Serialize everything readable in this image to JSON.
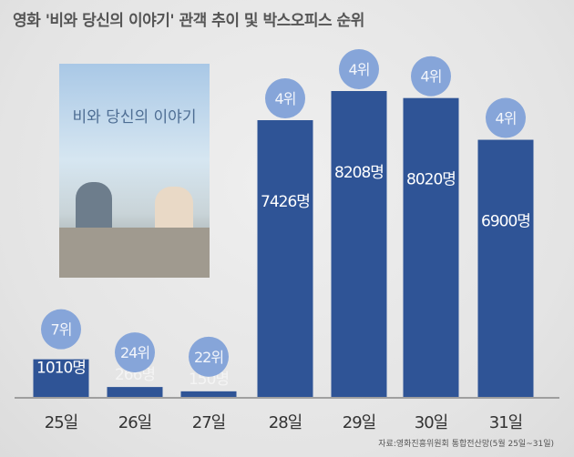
{
  "chart_data": {
    "type": "bar",
    "title": "영화 '비와 당신의 이야기' 관객 추이 및 박스오피스 순위",
    "categories": [
      "25일",
      "26일",
      "27일",
      "28일",
      "29일",
      "30일",
      "31일"
    ],
    "values": [
      1010,
      266,
      150,
      7426,
      8208,
      8020,
      6900
    ],
    "value_labels": [
      "1010명",
      "266명",
      "150명",
      "7426명",
      "8208명",
      "8020명",
      "6900명"
    ],
    "ranks": [
      "7위",
      "24위",
      "22위",
      "4위",
      "4위",
      "4위",
      "4위"
    ],
    "xlabel": "",
    "ylabel": "",
    "ylim": [
      0,
      8500
    ],
    "source": "자료:영화진흥위원회 통합전산망(5월 25일~31일)",
    "colors": {
      "bar": "#2f5496",
      "rank_circle": "#86a5d9",
      "axis": "#888888"
    }
  },
  "poster": {
    "title": "비와 당신의 이야기"
  }
}
